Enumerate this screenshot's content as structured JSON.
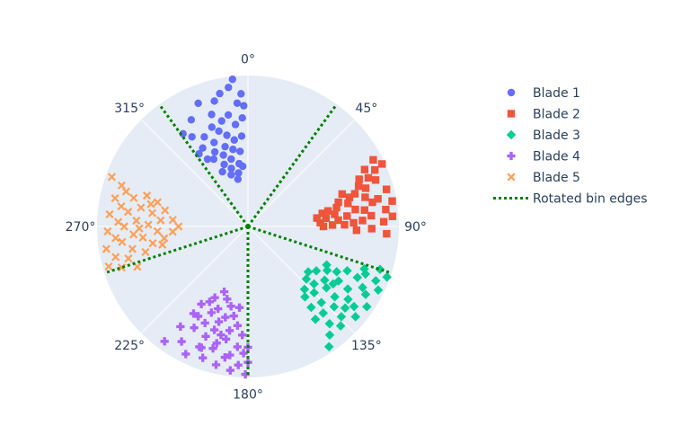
{
  "chart_data": {
    "type": "scatter",
    "subtype": "polar",
    "angular_axis": {
      "direction": "clockwise",
      "rotation": "0° at top",
      "tick_labels": [
        "0°",
        "45°",
        "90°",
        "135°",
        "180°",
        "225°",
        "270°",
        "315°"
      ],
      "tick_values_deg": [
        0,
        45,
        90,
        135,
        180,
        225,
        270,
        315
      ]
    },
    "radial_axis": {
      "range": [
        0,
        1
      ],
      "tick_labels_visible": false,
      "grid": true
    },
    "background_color": "#e5ecf6",
    "legend": {
      "placement": "right"
    },
    "series": [
      {
        "name": "Blade 1",
        "marker": "circle",
        "color": "#636efa",
        "points": [
          [
            -6,
            0.98
          ],
          [
            -8,
            0.93
          ],
          [
            -5,
            0.82
          ],
          [
            -12,
            0.9
          ],
          [
            -15,
            0.86
          ],
          [
            -3,
            0.72
          ],
          [
            -7,
            0.68
          ],
          [
            -10,
            0.75
          ],
          [
            -14,
            0.72
          ],
          [
            -18,
            0.78
          ],
          [
            -4,
            0.6
          ],
          [
            -9,
            0.58
          ],
          [
            -13,
            0.62
          ],
          [
            -17,
            0.66
          ],
          [
            -20,
            0.7
          ],
          [
            -6,
            0.5
          ],
          [
            -11,
            0.52
          ],
          [
            -16,
            0.55
          ],
          [
            -22,
            0.6
          ],
          [
            -26,
            0.66
          ],
          [
            -8,
            0.42
          ],
          [
            -14,
            0.46
          ],
          [
            -19,
            0.5
          ],
          [
            -24,
            0.54
          ],
          [
            -30,
            0.6
          ],
          [
            -10,
            0.36
          ],
          [
            -16,
            0.4
          ],
          [
            -21,
            0.44
          ],
          [
            -27,
            0.5
          ],
          [
            -34,
            0.58
          ],
          [
            -35,
            0.75
          ],
          [
            -28,
            0.8
          ],
          [
            -22,
            0.88
          ],
          [
            -32,
            0.7
          ],
          [
            -5,
            0.4
          ],
          [
            -12,
            0.32
          ],
          [
            -18,
            0.36
          ],
          [
            -25,
            0.4
          ],
          [
            -3,
            0.88
          ],
          [
            -2,
            0.8
          ],
          [
            -31,
            0.52
          ]
        ]
      },
      {
        "name": "Blade 2",
        "marker": "square",
        "color": "#ef553b",
        "points": [
          [
            65,
            0.98
          ],
          [
            66,
            0.92
          ],
          [
            70,
            0.9
          ],
          [
            75,
            0.95
          ],
          [
            78,
            0.88
          ],
          [
            80,
            0.97
          ],
          [
            83,
            0.92
          ],
          [
            86,
            0.96
          ],
          [
            88,
            0.9
          ],
          [
            72,
            0.82
          ],
          [
            76,
            0.8
          ],
          [
            79,
            0.84
          ],
          [
            82,
            0.78
          ],
          [
            85,
            0.82
          ],
          [
            87,
            0.76
          ],
          [
            74,
            0.7
          ],
          [
            77,
            0.68
          ],
          [
            81,
            0.72
          ],
          [
            84,
            0.66
          ],
          [
            88,
            0.7
          ],
          [
            89,
            0.64
          ],
          [
            78,
            0.6
          ],
          [
            82,
            0.58
          ],
          [
            86,
            0.6
          ],
          [
            89,
            0.56
          ],
          [
            80,
            0.5
          ],
          [
            84,
            0.52
          ],
          [
            87,
            0.48
          ],
          [
            90,
            0.5
          ],
          [
            68,
            0.86
          ],
          [
            70,
            0.78
          ],
          [
            73,
            0.74
          ],
          [
            62,
            0.94
          ],
          [
            64,
            0.86
          ],
          [
            67,
            0.8
          ],
          [
            71,
            0.66
          ],
          [
            75,
            0.62
          ],
          [
            79,
            0.54
          ],
          [
            83,
            0.46
          ],
          [
            91,
            0.82
          ],
          [
            93,
            0.92
          ],
          [
            92,
            0.72
          ]
        ]
      },
      {
        "name": "Blade 3",
        "marker": "diamond",
        "color": "#00cc96",
        "points": [
          [
            110,
            0.98
          ],
          [
            113,
            0.92
          ],
          [
            116,
            0.96
          ],
          [
            120,
            0.9
          ],
          [
            124,
            0.95
          ],
          [
            127,
            0.88
          ],
          [
            130,
            0.93
          ],
          [
            134,
            0.86
          ],
          [
            137,
            0.9
          ],
          [
            140,
            0.84
          ],
          [
            112,
            0.84
          ],
          [
            115,
            0.8
          ],
          [
            118,
            0.86
          ],
          [
            122,
            0.78
          ],
          [
            126,
            0.82
          ],
          [
            129,
            0.74
          ],
          [
            133,
            0.78
          ],
          [
            136,
            0.7
          ],
          [
            139,
            0.76
          ],
          [
            142,
            0.68
          ],
          [
            114,
            0.72
          ],
          [
            117,
            0.66
          ],
          [
            121,
            0.7
          ],
          [
            125,
            0.62
          ],
          [
            128,
            0.66
          ],
          [
            131,
            0.58
          ],
          [
            135,
            0.62
          ],
          [
            138,
            0.56
          ],
          [
            141,
            0.6
          ],
          [
            119,
            0.6
          ],
          [
            123,
            0.54
          ],
          [
            127,
            0.5
          ],
          [
            132,
            0.52
          ],
          [
            108,
            0.92
          ],
          [
            110,
            0.82
          ],
          [
            144,
            0.76
          ],
          [
            143,
            0.9
          ],
          [
            146,
            0.96
          ],
          [
            116,
            0.58
          ],
          [
            124,
            0.68
          ],
          [
            130,
            0.84
          ]
        ]
      },
      {
        "name": "Blade 4",
        "marker": "cross",
        "color": "#ab63fa",
        "points": [
          [
            181,
            0.98
          ],
          [
            184,
            0.92
          ],
          [
            187,
            0.96
          ],
          [
            190,
            0.88
          ],
          [
            193,
            0.94
          ],
          [
            196,
            0.84
          ],
          [
            199,
            0.92
          ],
          [
            202,
            0.86
          ],
          [
            206,
            0.94
          ],
          [
            210,
            0.88
          ],
          [
            182,
            0.84
          ],
          [
            185,
            0.8
          ],
          [
            188,
            0.86
          ],
          [
            191,
            0.76
          ],
          [
            195,
            0.8
          ],
          [
            198,
            0.72
          ],
          [
            201,
            0.78
          ],
          [
            204,
            0.7
          ],
          [
            208,
            0.76
          ],
          [
            212,
            0.68
          ],
          [
            183,
            0.72
          ],
          [
            186,
            0.66
          ],
          [
            190,
            0.7
          ],
          [
            194,
            0.62
          ],
          [
            197,
            0.66
          ],
          [
            200,
            0.58
          ],
          [
            203,
            0.62
          ],
          [
            207,
            0.56
          ],
          [
            211,
            0.6
          ],
          [
            189,
            0.6
          ],
          [
            192,
            0.54
          ],
          [
            196,
            0.5
          ],
          [
            200,
            0.46
          ],
          [
            205,
            0.52
          ],
          [
            180,
            0.9
          ],
          [
            180,
            0.8
          ],
          [
            214,
            0.8
          ],
          [
            216,
            0.94
          ],
          [
            186,
            0.54
          ],
          [
            194,
            0.74
          ],
          [
            201,
            0.86
          ],
          [
            209,
            0.68
          ]
        ]
      },
      {
        "name": "Blade 5",
        "marker": "x",
        "color": "#ffa15a",
        "points": [
          [
            254,
            0.96
          ],
          [
            257,
            0.9
          ],
          [
            261,
            0.95
          ],
          [
            265,
            0.88
          ],
          [
            268,
            0.93
          ],
          [
            272,
            0.86
          ],
          [
            275,
            0.92
          ],
          [
            279,
            0.85
          ],
          [
            282,
            0.9
          ],
          [
            286,
            0.84
          ],
          [
            255,
            0.82
          ],
          [
            259,
            0.78
          ],
          [
            263,
            0.84
          ],
          [
            266,
            0.76
          ],
          [
            270,
            0.82
          ],
          [
            273,
            0.74
          ],
          [
            277,
            0.8
          ],
          [
            280,
            0.72
          ],
          [
            284,
            0.78
          ],
          [
            287,
            0.7
          ],
          [
            256,
            0.7
          ],
          [
            260,
            0.64
          ],
          [
            264,
            0.7
          ],
          [
            267,
            0.6
          ],
          [
            271,
            0.66
          ],
          [
            274,
            0.58
          ],
          [
            278,
            0.64
          ],
          [
            281,
            0.56
          ],
          [
            285,
            0.62
          ],
          [
            262,
            0.56
          ],
          [
            266,
            0.5
          ],
          [
            270,
            0.46
          ],
          [
            275,
            0.5
          ],
          [
            252,
            0.88
          ],
          [
            250,
            0.78
          ],
          [
            288,
            0.88
          ],
          [
            290,
            0.96
          ],
          [
            258,
            0.58
          ],
          [
            283,
            0.66
          ],
          [
            269,
            0.72
          ]
        ]
      },
      {
        "name": "Rotated bin edges",
        "line": "dotted",
        "color": "#008000",
        "edges_deg": [
          36,
          108,
          180,
          252,
          324
        ]
      }
    ]
  }
}
